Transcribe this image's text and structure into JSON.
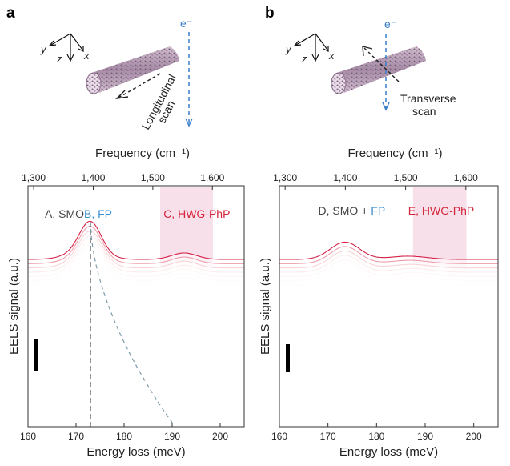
{
  "figure": {
    "panels": [
      {
        "letter": "a",
        "e_label": "e⁻",
        "axis_labels": {
          "x": "x",
          "y": "y",
          "z": "z"
        },
        "scan_label": [
          "Longitudinal",
          "scan"
        ]
      },
      {
        "letter": "b",
        "e_label": "e⁻",
        "axis_labels": {
          "x": "x",
          "y": "y",
          "z": "z"
        },
        "scan_label": [
          "Transverse",
          "scan"
        ]
      }
    ]
  },
  "colors": {
    "ann_gray": "#444444",
    "ann_blue": "#3a8fd0",
    "ann_red": "#d6243a",
    "band": "#f6dbe6",
    "ramp": [
      "#3f6b3a",
      "#7aa830",
      "#c9cf20",
      "#f4c21a",
      "#f08a1e",
      "#e84a2a",
      "#d51f45"
    ]
  },
  "chart_data": [
    {
      "type": "line",
      "panel": "a",
      "title": "",
      "xlabel": "Energy loss (meV)",
      "ylabel": "EELS signal (a.u.)",
      "xlim": [
        160,
        205
      ],
      "x_ticks": [
        160,
        170,
        180,
        190,
        200
      ],
      "top_axis": {
        "label": "Frequency (cm⁻¹)",
        "ticks": [
          "1,300",
          "1,400",
          "1,500",
          "1,600"
        ],
        "tick_values": [
          1300,
          1400,
          1500,
          1600
        ]
      },
      "shaded_band": [
        187.5,
        198.5
      ],
      "dashed_vertical_at": 173,
      "n_spectra": 38,
      "peaks": [
        {
          "name": "A",
          "center_meV": 172,
          "width": 3.6
        },
        {
          "name": "B",
          "center_meV": 173,
          "width": 2.2
        },
        {
          "name": "C",
          "center_meV": 192.5,
          "width": 2.6
        }
      ],
      "annotations": [
        {
          "parts": [
            {
              "text": "A, SMO",
              "color": "gray"
            },
            {
              "text": "B, FP",
              "color": "blue"
            }
          ]
        },
        {
          "parts": [
            {
              "text": "C, HWG-PhP",
              "color": "red"
            }
          ]
        }
      ],
      "grid": false
    },
    {
      "type": "line",
      "panel": "b",
      "title": "",
      "xlabel": "Energy loss (meV)",
      "ylabel": "EELS signal (a.u.)",
      "xlim": [
        160,
        205
      ],
      "x_ticks": [
        160,
        170,
        180,
        190,
        200
      ],
      "top_axis": {
        "label": "Frequency (cm⁻¹)",
        "ticks": [
          "1,300",
          "1,400",
          "1,500",
          "1,600"
        ],
        "tick_values": [
          1300,
          1400,
          1500,
          1600
        ]
      },
      "shaded_band": [
        187.5,
        198.5
      ],
      "n_spectra": 38,
      "peaks": [
        {
          "name": "D",
          "center_meV": 173.5,
          "width": 3.0
        },
        {
          "name": "E",
          "center_meV": 192,
          "width": 3.8
        }
      ],
      "annotations": [
        {
          "parts": [
            {
              "text": "D, SMO + ",
              "color": "gray"
            },
            {
              "text": "FP",
              "color": "blue"
            }
          ]
        },
        {
          "parts": [
            {
              "text": "E, HWG-PhP",
              "color": "red"
            }
          ]
        }
      ],
      "grid": false
    }
  ]
}
